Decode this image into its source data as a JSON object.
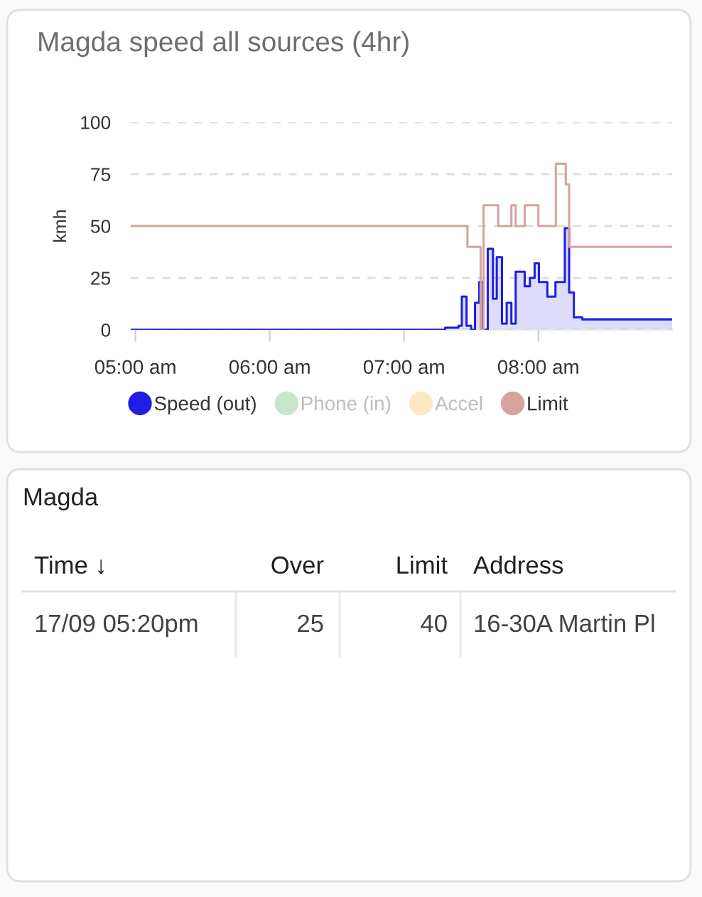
{
  "chart_data": [
    {
      "type": "step",
      "title": "Magda speed all sources (4hr)",
      "ylabel": "kmh",
      "xlim": [
        4.965,
        8.996
      ],
      "xticks": [
        {
          "value": 5,
          "label": "05:00 am"
        },
        {
          "value": 6,
          "label": "06:00 am"
        },
        {
          "value": 7,
          "label": "07:00 am"
        },
        {
          "value": 8,
          "label": "08:00 am"
        }
      ],
      "ylim": [
        0,
        100
      ],
      "yticks": [
        0,
        25,
        50,
        75,
        100
      ],
      "grid": "y",
      "legend": "bottom",
      "series": [
        {
          "name": "Speed (out)",
          "color": "#1e1ee6",
          "type": "area",
          "x": [
            4.965,
            7.306,
            7.405,
            7.43,
            7.465,
            7.5,
            7.528,
            7.56,
            7.588,
            7.623,
            7.662,
            7.69,
            7.729,
            7.764,
            7.799,
            7.831,
            7.898,
            7.937,
            7.972,
            8.004,
            8.067,
            8.127,
            8.197,
            8.229,
            8.264,
            8.327,
            8.996
          ],
          "values": [
            0,
            1,
            2,
            16,
            2,
            0,
            13,
            23,
            0,
            39,
            15,
            35,
            3,
            13,
            3,
            28,
            21,
            25,
            32,
            23,
            16,
            23,
            49,
            18,
            6,
            5,
            5
          ]
        },
        {
          "name": "Phone (in)",
          "color": "#c8e6c9"
        },
        {
          "name": "Accel",
          "color": "#fde8c4"
        },
        {
          "name": "Limit",
          "color": "#d6a39e",
          "x": [
            4.965,
            7.472,
            7.57,
            7.592,
            7.701,
            7.799,
            7.831,
            7.898,
            8.0,
            8.13,
            8.204,
            8.229,
            8.996
          ],
          "values": [
            50,
            40,
            0,
            60,
            50,
            60,
            50,
            60,
            50,
            80,
            70,
            40,
            40
          ]
        }
      ]
    },
    {
      "type": "other",
      "title": "Magda",
      "annotations": [
        "Time ↓",
        "Over",
        "Limit",
        "Address",
        "17/09 05:20pm",
        "25",
        "40",
        "16-30A Martin Pl"
      ]
    }
  ]
}
